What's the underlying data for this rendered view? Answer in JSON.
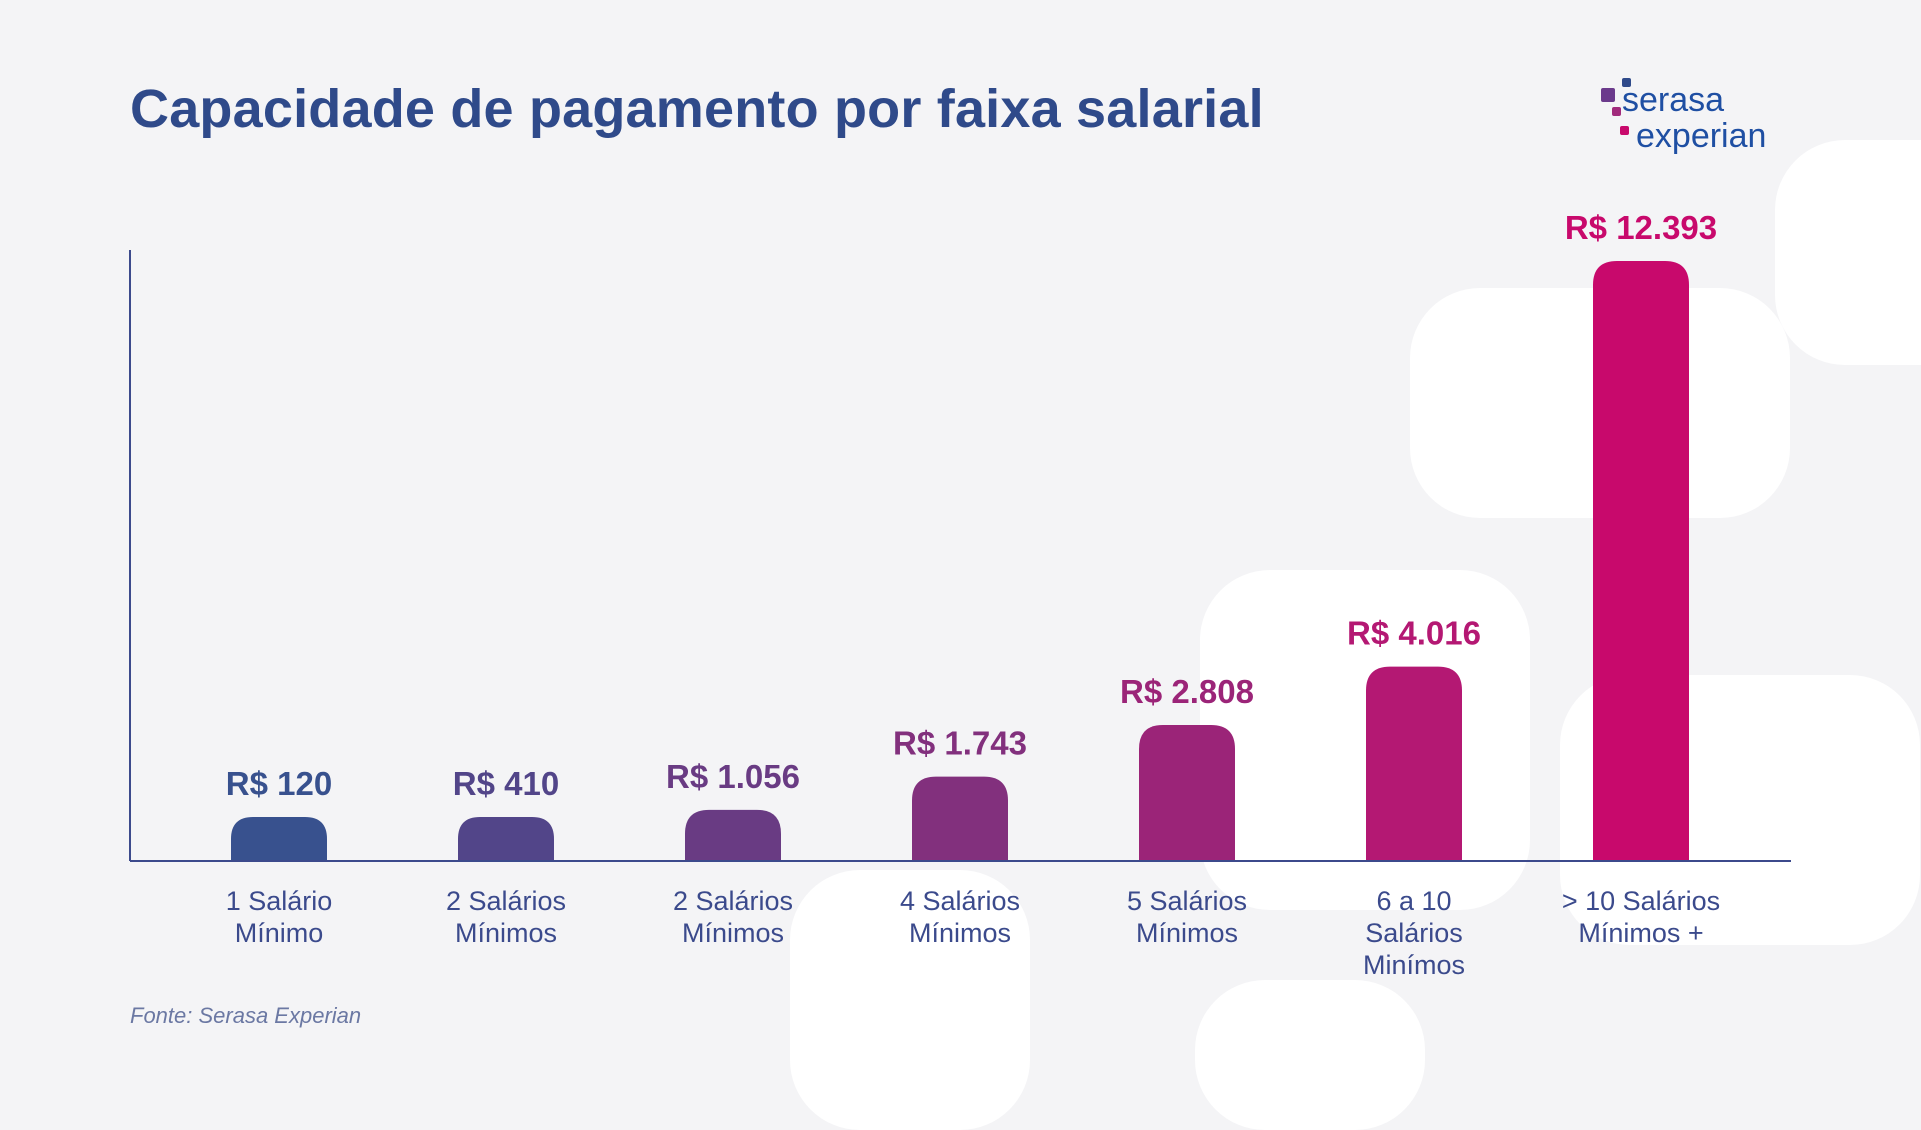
{
  "title": "Capacidade de pagamento por faixa salarial",
  "logo": {
    "line1": "serasa",
    "line2": "experian"
  },
  "source": "Fonte: Serasa Experian",
  "colors": {
    "title": "#2f4a8a",
    "axis": "#3c4a8c",
    "category_label": "#3b4a8c",
    "bars": [
      "#38518e",
      "#524589",
      "#693b83",
      "#82307d",
      "#9b2478",
      "#b41873",
      "#c8096c"
    ],
    "logo_dots": [
      "#6b3a8c",
      "#a12a7c",
      "#c8096c",
      "#2f4a8a"
    ]
  },
  "chart_data": {
    "type": "bar",
    "title": "Capacidade de pagamento por faixa salarial",
    "xlabel": "",
    "ylabel": "",
    "ylim": [
      0,
      12393
    ],
    "grid": false,
    "legend": "none",
    "categories": [
      [
        "1 Salário",
        "Mínimo"
      ],
      [
        "2 Salários",
        "Mínimos"
      ],
      [
        "2 Salários",
        "Mínimos"
      ],
      [
        "4 Salários",
        "Mínimos"
      ],
      [
        "5 Salários",
        "Mínimos"
      ],
      [
        "6 a 10",
        "Salários",
        "Minímos"
      ],
      [
        "> 10 Salários",
        "Mínimos +"
      ]
    ],
    "values": [
      120,
      410,
      1056,
      1743,
      2808,
      4016,
      12393
    ],
    "value_labels": [
      "R$ 120",
      "R$ 410",
      "R$ 1.056",
      "R$ 1.743",
      "R$ 2.808",
      "R$ 4.016",
      "R$ 12.393"
    ]
  }
}
